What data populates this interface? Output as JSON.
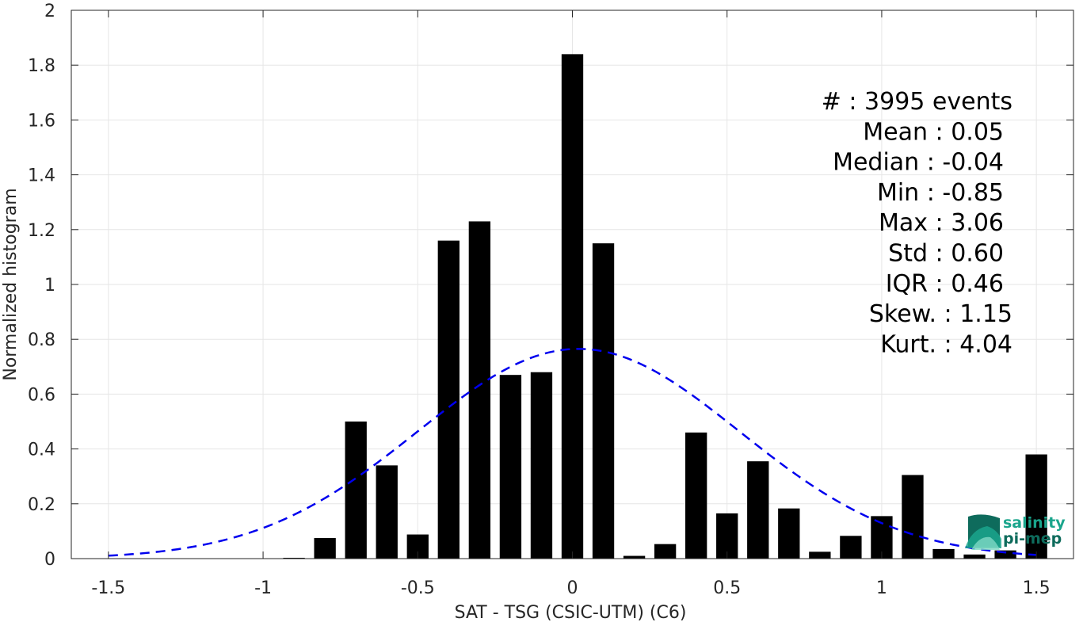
{
  "chart_data": {
    "type": "bar",
    "title": "",
    "xlabel": "SAT - TSG (CSIC-UTM) (C6)",
    "ylabel": "Normalized histogram",
    "xlim": [
      -1.62,
      1.62
    ],
    "ylim": [
      0,
      2
    ],
    "grid": true,
    "x_ticks": [
      -1.5,
      -1,
      -0.5,
      0,
      0.5,
      1,
      1.5
    ],
    "x_tick_labels": [
      "-1.5",
      "-1",
      "-0.5",
      "0",
      "0.5",
      "1",
      "1.5"
    ],
    "y_ticks": [
      0,
      0.2,
      0.4,
      0.6,
      0.8,
      1,
      1.2,
      1.4,
      1.6,
      1.8,
      2
    ],
    "y_tick_labels": [
      "0",
      "0.2",
      "0.4",
      "0.6",
      "0.8",
      "1",
      "1.2",
      "1.4",
      "1.6",
      "1.8",
      "2"
    ],
    "bar_width": 0.07,
    "bar_color": "#000000",
    "bars": [
      {
        "x": -1.4,
        "value": 0.0
      },
      {
        "x": -1.3,
        "value": 0.0
      },
      {
        "x": -1.2,
        "value": 0.0
      },
      {
        "x": -1.1,
        "value": 0.0
      },
      {
        "x": -1.0,
        "value": 0.0
      },
      {
        "x": -0.9,
        "value": 0.003
      },
      {
        "x": -0.8,
        "value": 0.075
      },
      {
        "x": -0.7,
        "value": 0.5
      },
      {
        "x": -0.6,
        "value": 0.34
      },
      {
        "x": -0.5,
        "value": 0.088
      },
      {
        "x": -0.4,
        "value": 1.16
      },
      {
        "x": -0.3,
        "value": 1.23
      },
      {
        "x": -0.2,
        "value": 0.67
      },
      {
        "x": -0.1,
        "value": 0.68
      },
      {
        "x": 0.0,
        "value": 1.84
      },
      {
        "x": 0.1,
        "value": 1.15
      },
      {
        "x": 0.2,
        "value": 0.01
      },
      {
        "x": 0.3,
        "value": 0.053
      },
      {
        "x": 0.4,
        "value": 0.46
      },
      {
        "x": 0.5,
        "value": 0.165
      },
      {
        "x": 0.6,
        "value": 0.355
      },
      {
        "x": 0.7,
        "value": 0.183
      },
      {
        "x": 0.8,
        "value": 0.025
      },
      {
        "x": 0.9,
        "value": 0.083
      },
      {
        "x": 1.0,
        "value": 0.155
      },
      {
        "x": 1.1,
        "value": 0.305
      },
      {
        "x": 1.2,
        "value": 0.035
      },
      {
        "x": 1.3,
        "value": 0.015
      },
      {
        "x": 1.4,
        "value": 0.03
      },
      {
        "x": 1.5,
        "value": 0.38
      }
    ],
    "fit_curve": {
      "kind": "gaussian",
      "style": "dashed",
      "color": "#0000ee",
      "mean": 0.02,
      "std": 0.52,
      "peak": 0.765,
      "x_range": [
        -1.5,
        1.5
      ]
    },
    "stats_lines": [
      "#  : 3995 events",
      "Mean : 0.05",
      "Median : -0.04",
      "Min : -0.85",
      "Max : 3.06",
      "Std : 0.60",
      "IQR : 0.46",
      "Skew. : 1.15",
      "Kurt. : 4.04"
    ]
  },
  "logo": {
    "line1": "salinity",
    "line2": "pi-mep",
    "color_text": "#1aa58c",
    "color_dark": "#0e6b5c"
  }
}
